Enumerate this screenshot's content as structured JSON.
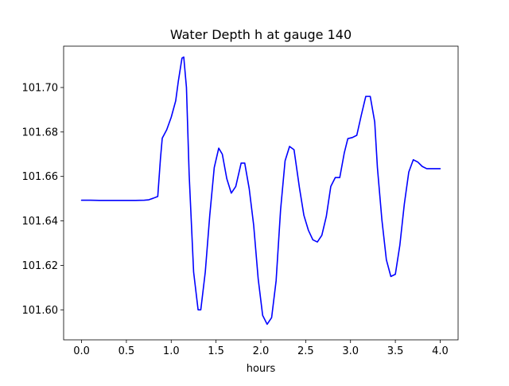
{
  "chart_data": {
    "type": "line",
    "title": "Water Depth h at gauge 140",
    "xlabel": "hours",
    "ylabel": "",
    "xlim": [
      -0.2,
      4.2
    ],
    "ylim": [
      101.5865,
      101.7186
    ],
    "xticks": [
      0.0,
      0.5,
      1.0,
      1.5,
      2.0,
      2.5,
      3.0,
      3.5,
      4.0
    ],
    "xtick_labels": [
      "0.0",
      "0.5",
      "1.0",
      "1.5",
      "2.0",
      "2.5",
      "3.0",
      "3.5",
      "4.0"
    ],
    "yticks": [
      101.6,
      101.62,
      101.64,
      101.66,
      101.68,
      101.7
    ],
    "ytick_labels": [
      "101.60",
      "101.62",
      "101.64",
      "101.66",
      "101.68",
      "101.70"
    ],
    "grid": false,
    "legend": null,
    "colors": {
      "line": "#0000ff",
      "axes": "#000000",
      "background": "#ffffff"
    },
    "series": [
      {
        "x": [
          0.0,
          0.1,
          0.2,
          0.3,
          0.4,
          0.5,
          0.6,
          0.7,
          0.75,
          0.8,
          0.85,
          0.88,
          0.9,
          0.95,
          1.0,
          1.05,
          1.08,
          1.12,
          1.14,
          1.17,
          1.2,
          1.25,
          1.3,
          1.33,
          1.38,
          1.43,
          1.48,
          1.53,
          1.57,
          1.62,
          1.67,
          1.72,
          1.78,
          1.82,
          1.87,
          1.92,
          1.97,
          2.02,
          2.07,
          2.12,
          2.17,
          2.22,
          2.27,
          2.32,
          2.37,
          2.43,
          2.48,
          2.53,
          2.58,
          2.63,
          2.68,
          2.73,
          2.78,
          2.83,
          2.88,
          2.93,
          2.97,
          3.02,
          3.07,
          3.12,
          3.17,
          3.22,
          3.27,
          3.3,
          3.35,
          3.4,
          3.45,
          3.5,
          3.55,
          3.6,
          3.65,
          3.7,
          3.75,
          3.8,
          3.85,
          3.9,
          3.95,
          4.0
        ],
        "y": [
          101.6493,
          101.6493,
          101.6492,
          101.6492,
          101.6492,
          101.6492,
          101.6492,
          101.6493,
          101.6495,
          101.6502,
          101.651,
          101.668,
          101.6772,
          101.681,
          101.6866,
          101.694,
          101.703,
          101.7132,
          101.7137,
          101.7,
          101.661,
          101.617,
          101.6,
          101.6,
          101.617,
          101.6425,
          101.664,
          101.6727,
          101.67,
          101.659,
          101.6525,
          101.6555,
          101.666,
          101.666,
          101.6545,
          101.638,
          101.614,
          101.5975,
          101.5935,
          101.5965,
          101.613,
          101.645,
          101.667,
          101.6735,
          101.672,
          101.655,
          101.6425,
          101.6358,
          101.6315,
          101.6305,
          101.6335,
          101.642,
          101.6555,
          101.6595,
          101.6595,
          101.6705,
          101.677,
          101.6775,
          101.6785,
          101.6875,
          101.696,
          101.696,
          101.6845,
          101.664,
          101.6405,
          101.6225,
          101.615,
          101.616,
          101.629,
          101.6475,
          101.662,
          101.6675,
          101.6665,
          101.6645,
          101.6635,
          101.6635,
          101.6635,
          101.6635
        ]
      }
    ]
  }
}
